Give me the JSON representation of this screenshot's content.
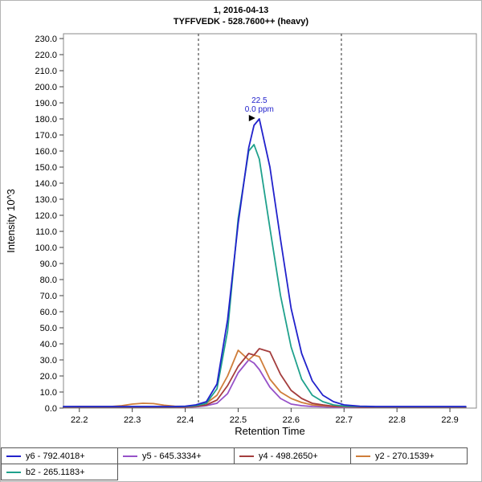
{
  "title": {
    "line1": "1, 2016-04-13",
    "line2": "TYFFVEDK - 528.7600++ (heavy)"
  },
  "chart_data": {
    "type": "line",
    "title": "1, 2016-04-13",
    "subtitle": "TYFFVEDK - 528.7600++ (heavy)",
    "xlabel": "Retention Time",
    "ylabel": "Intensity 10^3",
    "xlim": [
      22.17,
      22.95
    ],
    "ylim": [
      0,
      233
    ],
    "x_ticks": [
      22.2,
      22.3,
      22.4,
      22.5,
      22.6,
      22.7,
      22.8,
      22.9
    ],
    "y_ticks": [
      0,
      10,
      20,
      30,
      40,
      50,
      60,
      70,
      80,
      90,
      100,
      110,
      120,
      130,
      140,
      150,
      160,
      170,
      180,
      190,
      200,
      210,
      220,
      230
    ],
    "grid": false,
    "legend_position": "bottom",
    "x": [
      22.17,
      22.2,
      22.23,
      22.26,
      22.28,
      22.3,
      22.32,
      22.34,
      22.36,
      22.38,
      22.4,
      22.42,
      22.44,
      22.46,
      22.48,
      22.5,
      22.52,
      22.53,
      22.54,
      22.56,
      22.58,
      22.6,
      22.62,
      22.64,
      22.66,
      22.68,
      22.7,
      22.73,
      22.76,
      22.8,
      22.85,
      22.9,
      22.93
    ],
    "series": [
      {
        "name": "y6 - 792.4018+",
        "color": "#2222cc",
        "values": [
          1,
          1,
          1,
          1,
          1,
          1,
          1,
          1,
          1,
          1,
          1.2,
          2,
          4,
          15,
          55,
          115,
          162,
          176,
          180,
          150,
          105,
          62,
          34,
          17,
          8,
          4,
          2,
          1.2,
          1,
          1,
          1,
          1,
          1
        ]
      },
      {
        "name": "y5 - 645.3334+",
        "color": "#9651c8",
        "values": [
          0.5,
          0.5,
          0.5,
          0.5,
          0.5,
          0.5,
          0.5,
          0.5,
          0.5,
          0.5,
          0.5,
          0.8,
          1.5,
          3,
          9,
          22,
          30,
          28,
          24,
          13,
          6,
          2.5,
          1.5,
          1,
          0.8,
          0.5,
          0.5,
          0.5,
          0.5,
          0.5,
          0.5,
          0.5,
          0.5
        ]
      },
      {
        "name": "y4 - 498.2650+",
        "color": "#a43d3d",
        "values": [
          0.5,
          0.5,
          0.5,
          0.5,
          0.5,
          0.5,
          0.5,
          0.5,
          0.5,
          0.5,
          0.6,
          1,
          2,
          5,
          14,
          26,
          34,
          33,
          37,
          35,
          21,
          11,
          6,
          3,
          2,
          1.2,
          1,
          0.6,
          0.5,
          0.5,
          0.5,
          0.5,
          0.5
        ]
      },
      {
        "name": "y2 - 270.1539+",
        "color": "#cf7d3a",
        "values": [
          0.8,
          1,
          1,
          1,
          1.5,
          2.5,
          3,
          2.8,
          1.8,
          1.2,
          1,
          1.5,
          3,
          8,
          20,
          36,
          30,
          33,
          32,
          18,
          10,
          6,
          3.5,
          2,
          1.5,
          1,
          0.8,
          0.8,
          0.8,
          0.8,
          0.8,
          0.8,
          0.8
        ]
      },
      {
        "name": "b2 - 265.1183+",
        "color": "#1fa18c",
        "values": [
          0.8,
          0.8,
          0.8,
          0.8,
          0.8,
          0.8,
          0.8,
          0.8,
          0.8,
          0.8,
          1,
          1.5,
          3,
          12,
          48,
          118,
          160,
          164,
          155,
          112,
          70,
          38,
          18,
          8,
          4,
          2,
          1.2,
          1,
          0.8,
          0.8,
          0.8,
          0.8,
          0.8
        ]
      }
    ],
    "peak_boundaries": [
      22.425,
      22.695
    ],
    "annotation": {
      "rt_label": "22.5",
      "ppm_label": "0.0 ppm",
      "x": 22.54,
      "y": 180,
      "color": "#2222cc"
    }
  }
}
